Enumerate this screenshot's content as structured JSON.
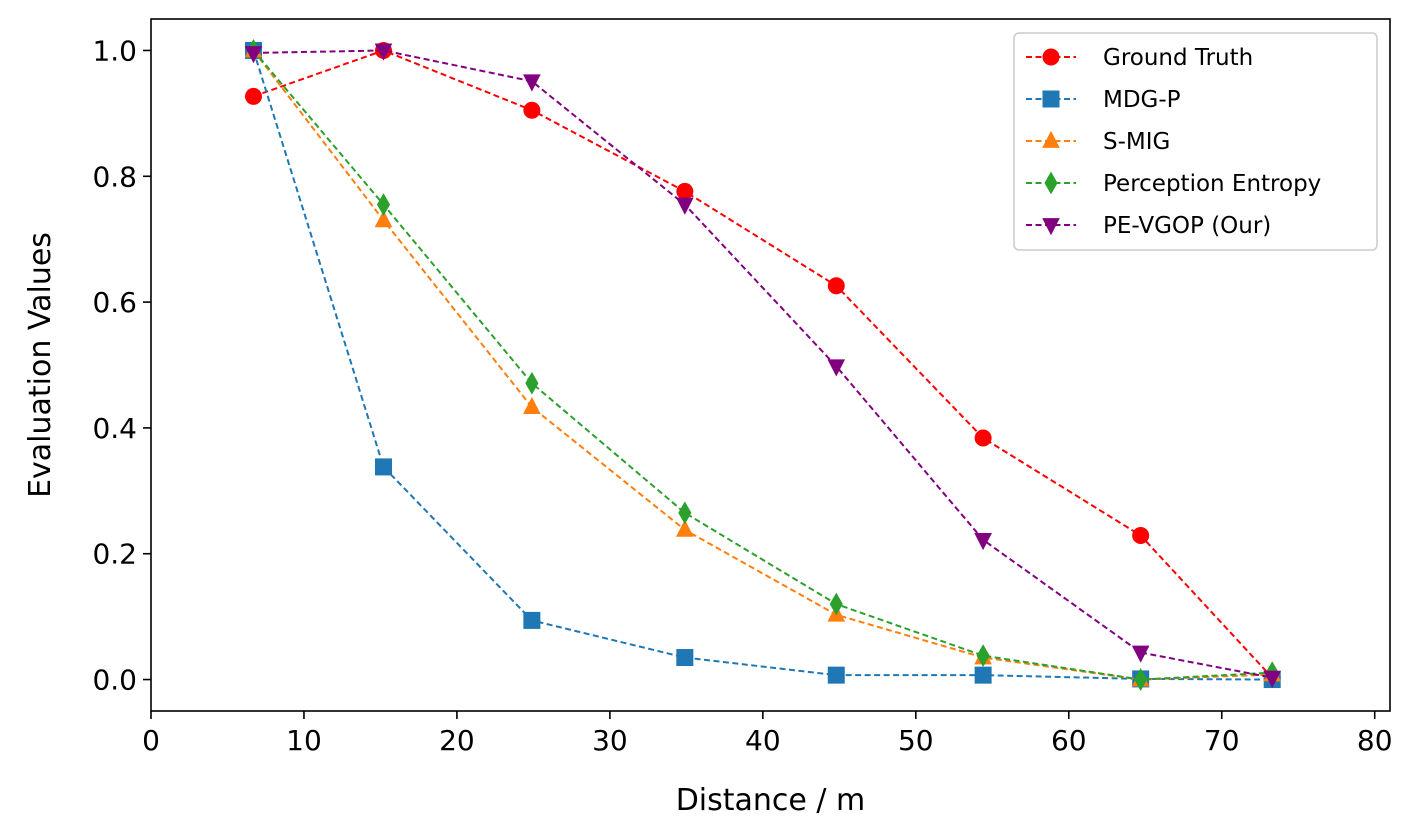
{
  "chart_data": {
    "type": "line",
    "title": "",
    "xlabel": "Distance / m",
    "ylabel": "Evaluation Values",
    "xlim": [
      0,
      81
    ],
    "ylim": [
      -0.05,
      1.05
    ],
    "xticks": [
      0,
      10,
      20,
      30,
      40,
      50,
      60,
      70,
      80
    ],
    "yticks": [
      0.0,
      0.2,
      0.4,
      0.6,
      0.8,
      1.0
    ],
    "xtick_labels": [
      "0",
      "10",
      "20",
      "30",
      "40",
      "50",
      "60",
      "70",
      "80"
    ],
    "ytick_labels": [
      "0.0",
      "0.2",
      "0.4",
      "0.6",
      "0.8",
      "1.0"
    ],
    "grid": false,
    "legend_position": "top-right",
    "x": [
      6.7,
      15.2,
      24.9,
      34.9,
      44.8,
      54.4,
      64.7,
      73.3
    ],
    "series": [
      {
        "name": "Ground Truth",
        "color": "#ff0000",
        "marker": "circle",
        "values": [
          0.927,
          1.0,
          0.905,
          0.776,
          0.626,
          0.384,
          0.229,
          0.003
        ]
      },
      {
        "name": "MDG-P",
        "color": "#1f77b4",
        "marker": "square",
        "values": [
          1.0,
          0.338,
          0.094,
          0.035,
          0.007,
          0.007,
          0.001,
          0.0
        ]
      },
      {
        "name": "S-MIG",
        "color": "#ff7f0e",
        "marker": "triangle-up",
        "values": [
          1.0,
          0.73,
          0.433,
          0.238,
          0.103,
          0.035,
          0.0,
          0.008
        ]
      },
      {
        "name": "Perception Entropy",
        "color": "#2ca02c",
        "marker": "diamond",
        "values": [
          1.0,
          0.755,
          0.471,
          0.265,
          0.12,
          0.038,
          0.0,
          0.011
        ]
      },
      {
        "name": "PE-VGOP (Our)",
        "color": "#800080",
        "marker": "triangle-down",
        "values": [
          0.996,
          1.0,
          0.951,
          0.755,
          0.498,
          0.222,
          0.043,
          0.003
        ]
      }
    ]
  }
}
